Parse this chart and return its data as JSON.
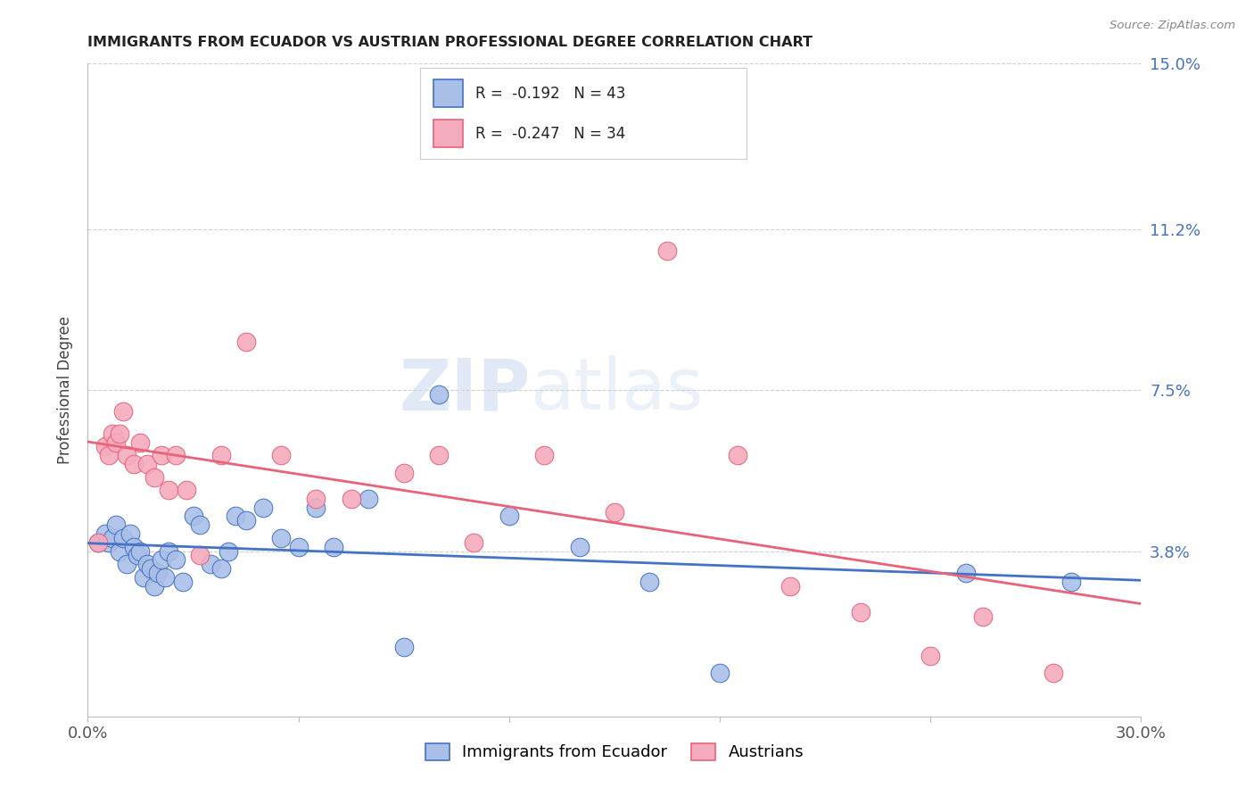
{
  "title": "IMMIGRANTS FROM ECUADOR VS AUSTRIAN PROFESSIONAL DEGREE CORRELATION CHART",
  "source": "Source: ZipAtlas.com",
  "ylabel": "Professional Degree",
  "xlim": [
    0.0,
    0.3
  ],
  "ylim": [
    0.0,
    0.15
  ],
  "blue_color": "#AABFE8",
  "pink_color": "#F4ABBE",
  "trendline_blue": "#4472C4",
  "trendline_pink": "#E8637A",
  "legend_label1": "Immigrants from Ecuador",
  "legend_label2": "Austrians",
  "ecuador_x": [
    0.003,
    0.005,
    0.006,
    0.007,
    0.008,
    0.009,
    0.01,
    0.011,
    0.012,
    0.013,
    0.014,
    0.015,
    0.016,
    0.017,
    0.018,
    0.019,
    0.02,
    0.021,
    0.022,
    0.023,
    0.025,
    0.027,
    0.03,
    0.032,
    0.035,
    0.038,
    0.04,
    0.042,
    0.045,
    0.05,
    0.055,
    0.06,
    0.065,
    0.07,
    0.08,
    0.09,
    0.1,
    0.12,
    0.14,
    0.16,
    0.18,
    0.25,
    0.28
  ],
  "ecuador_y": [
    0.04,
    0.042,
    0.04,
    0.041,
    0.044,
    0.038,
    0.041,
    0.035,
    0.042,
    0.039,
    0.037,
    0.038,
    0.032,
    0.035,
    0.034,
    0.03,
    0.033,
    0.036,
    0.032,
    0.038,
    0.036,
    0.031,
    0.046,
    0.044,
    0.035,
    0.034,
    0.038,
    0.046,
    0.045,
    0.048,
    0.041,
    0.039,
    0.048,
    0.039,
    0.05,
    0.016,
    0.074,
    0.046,
    0.039,
    0.031,
    0.01,
    0.033,
    0.031
  ],
  "austrian_x": [
    0.003,
    0.005,
    0.006,
    0.007,
    0.008,
    0.009,
    0.01,
    0.011,
    0.013,
    0.015,
    0.017,
    0.019,
    0.021,
    0.023,
    0.025,
    0.028,
    0.032,
    0.038,
    0.045,
    0.055,
    0.065,
    0.075,
    0.09,
    0.1,
    0.11,
    0.13,
    0.15,
    0.165,
    0.185,
    0.2,
    0.22,
    0.24,
    0.255,
    0.275
  ],
  "austrian_y": [
    0.04,
    0.062,
    0.06,
    0.065,
    0.063,
    0.065,
    0.07,
    0.06,
    0.058,
    0.063,
    0.058,
    0.055,
    0.06,
    0.052,
    0.06,
    0.052,
    0.037,
    0.06,
    0.086,
    0.06,
    0.05,
    0.05,
    0.056,
    0.06,
    0.04,
    0.06,
    0.047,
    0.107,
    0.06,
    0.03,
    0.024,
    0.014,
    0.023,
    0.01
  ],
  "watermark_zip": "ZIP",
  "watermark_atlas": "atlas",
  "grid_color": "#D0D0D0",
  "background_color": "#FFFFFF",
  "title_color": "#222222",
  "right_axis_color": "#4472C4",
  "right_yticklabels": [
    "",
    "3.8%",
    "7.5%",
    "11.2%",
    "15.0%"
  ],
  "right_ytick_vals": [
    0.0,
    0.038,
    0.075,
    0.112,
    0.15
  ]
}
